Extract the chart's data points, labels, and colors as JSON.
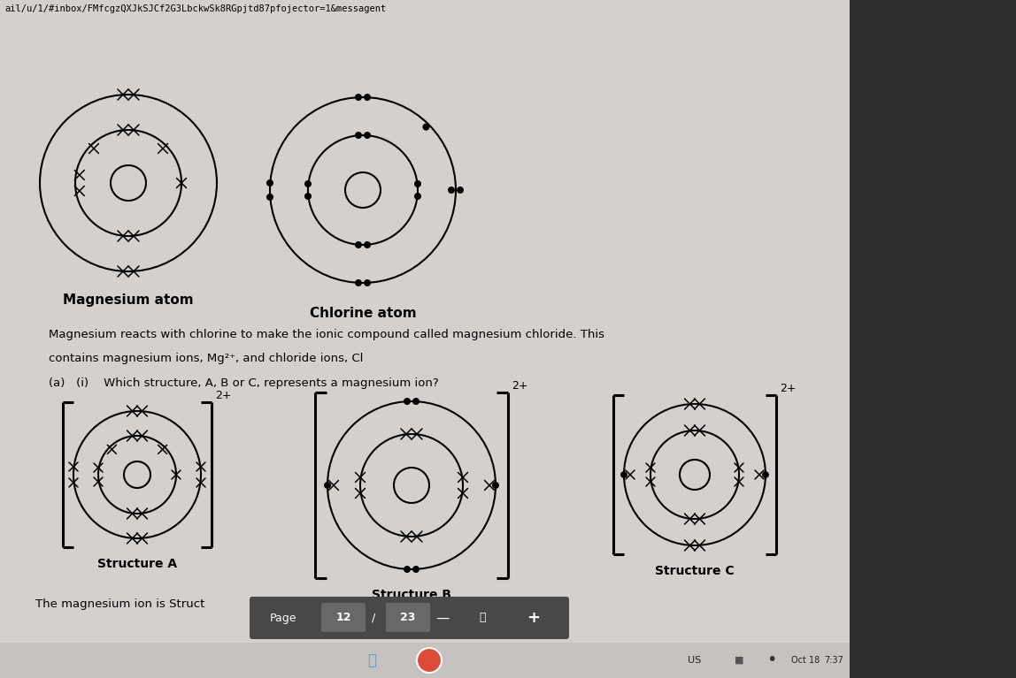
{
  "bg_color": "#d3d0ce",
  "right_panel_color": "#2e2e2e",
  "url_text": "ail/u/1/#inbox/FMfcgzQXJkSJCf2G3LbckwSk8RGpjtd87pfojector=1&messagent",
  "title_mg": "Magnesium atom",
  "title_cl": "Chlorine atom",
  "paragraph1": "Magnesium reacts with chlorine to make the ionic compound called magnesium chloride. This",
  "paragraph2": "contains magnesium ions, Mg²⁺, and chloride ions, Cl",
  "question": "(a)   (i)    Which structure, A, B or C, represents a magnesium ion?",
  "struct_a": "Structure A",
  "struct_b": "Structure B",
  "struct_c": "Structure C",
  "bottom_text": "The magnesium ion is Struct",
  "bottom_bar_color": "#4a4a4a"
}
